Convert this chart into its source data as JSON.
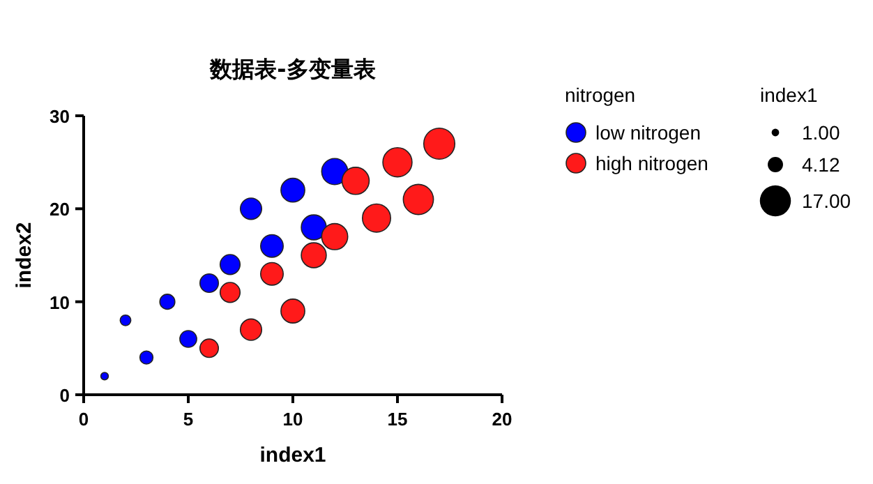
{
  "chart_data": {
    "type": "bubble",
    "title": "数据表-多变量表",
    "xlabel": "index1",
    "ylabel": "index2",
    "legend_title": "nitrogen",
    "legend": "right",
    "xlim": [
      0,
      20
    ],
    "xticks": [
      0,
      5,
      10,
      15,
      20
    ],
    "ylim": [
      0,
      30
    ],
    "yticks": [
      0,
      10,
      20,
      30
    ],
    "grid": false,
    "size_legend": [
      {
        "value": 1,
        "label": "1.00"
      },
      {
        "value": 4.12,
        "label": "4.12"
      },
      {
        "value": 17,
        "label": "17.00"
      }
    ],
    "annotations": [
      "index1"
    ],
    "series": [
      {
        "name": "low nitrogen",
        "color": "#0000ff",
        "x": [
          1,
          2,
          3,
          4,
          5,
          6,
          7,
          8,
          9,
          10,
          11,
          12
        ],
        "values": [
          2,
          8,
          4,
          10,
          6,
          12,
          14,
          20,
          16,
          22,
          18,
          24
        ],
        "sizes": [
          1,
          2,
          3,
          4,
          5,
          6,
          7,
          8,
          9,
          10,
          11,
          12
        ]
      },
      {
        "name": "high nitrogen",
        "color": "#ff1a1a",
        "x": [
          6,
          7,
          8,
          9,
          10,
          11,
          12,
          13,
          14,
          15,
          16,
          17
        ],
        "values": [
          5,
          11,
          7,
          13,
          9,
          15,
          17,
          23,
          19,
          25,
          21,
          27
        ],
        "sizes": [
          6,
          7,
          8,
          9,
          10,
          11,
          12,
          13,
          14,
          15,
          16,
          17
        ]
      }
    ]
  }
}
